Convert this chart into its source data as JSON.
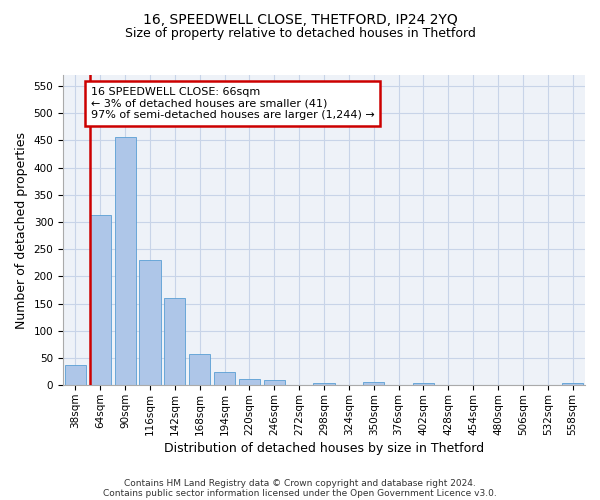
{
  "title1": "16, SPEEDWELL CLOSE, THETFORD, IP24 2YQ",
  "title2": "Size of property relative to detached houses in Thetford",
  "xlabel": "Distribution of detached houses by size in Thetford",
  "ylabel": "Number of detached properties",
  "categories": [
    "38sqm",
    "64sqm",
    "90sqm",
    "116sqm",
    "142sqm",
    "168sqm",
    "194sqm",
    "220sqm",
    "246sqm",
    "272sqm",
    "298sqm",
    "324sqm",
    "350sqm",
    "376sqm",
    "402sqm",
    "428sqm",
    "454sqm",
    "480sqm",
    "506sqm",
    "532sqm",
    "558sqm"
  ],
  "values": [
    38,
    312,
    457,
    230,
    160,
    57,
    25,
    12,
    10,
    0,
    5,
    0,
    6,
    0,
    5,
    0,
    0,
    0,
    0,
    0,
    5
  ],
  "bar_color": "#aec6e8",
  "bar_edge_color": "#5a9fd4",
  "vline_color": "#cc0000",
  "annotation_line1": "16 SPEEDWELL CLOSE: 66sqm",
  "annotation_line2": "← 3% of detached houses are smaller (41)",
  "annotation_line3": "97% of semi-detached houses are larger (1,244) →",
  "annotation_box_color": "#ffffff",
  "annotation_box_edge": "#cc0000",
  "ylim": [
    0,
    570
  ],
  "yticks": [
    0,
    50,
    100,
    150,
    200,
    250,
    300,
    350,
    400,
    450,
    500,
    550
  ],
  "footnote1": "Contains HM Land Registry data © Crown copyright and database right 2024.",
  "footnote2": "Contains public sector information licensed under the Open Government Licence v3.0.",
  "bg_color": "#eef2f8",
  "grid_color": "#c8d4e8",
  "title_fontsize": 10,
  "subtitle_fontsize": 9,
  "tick_fontsize": 7.5,
  "label_fontsize": 9,
  "annot_fontsize": 8
}
